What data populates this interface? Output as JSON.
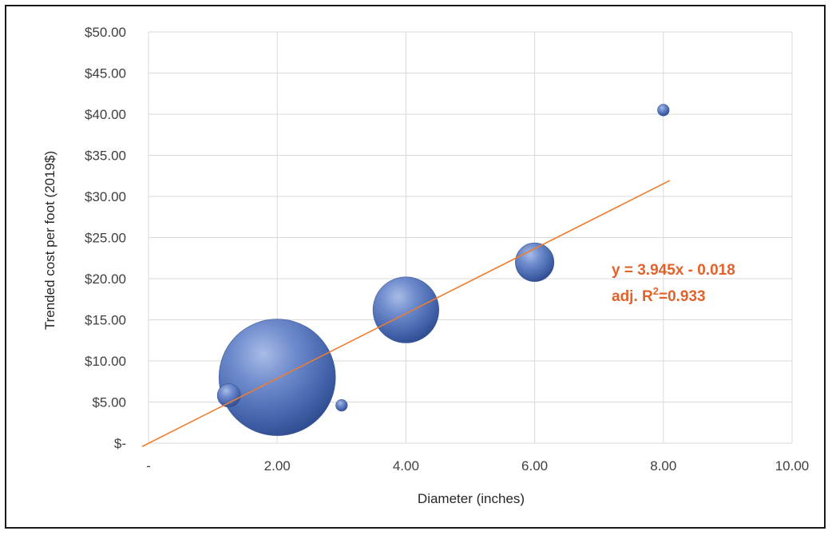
{
  "chart_data": {
    "type": "scatter",
    "subtype": "bubble",
    "title": "",
    "xlabel": "Diameter (inches)",
    "ylabel": "Trended cost per foot (2019$)",
    "xlim": [
      0,
      10
    ],
    "ylim": [
      0,
      50
    ],
    "x_ticks": [
      0,
      2,
      4,
      6,
      8,
      10
    ],
    "x_tick_labels": [
      "-",
      "2.00",
      "4.00",
      "6.00",
      "8.00",
      "10.00"
    ],
    "y_ticks": [
      0,
      5,
      10,
      15,
      20,
      25,
      30,
      35,
      40,
      45,
      50
    ],
    "y_tick_labels": [
      "$-",
      "$5.00",
      "$10.00",
      "$15.00",
      "$20.00",
      "$25.00",
      "$30.00",
      "$35.00",
      "$40.00",
      "$45.00",
      "$50.00"
    ],
    "grid": true,
    "legend": "none",
    "bubble_color": "#4f6fb5",
    "trend_color": "#ed7d31",
    "series": [
      {
        "points": [
          {
            "x": 1.25,
            "y": 5.8,
            "size": 4
          },
          {
            "x": 2.0,
            "y": 8.0,
            "size": 100
          },
          {
            "x": 3.0,
            "y": 4.6,
            "size": 1
          },
          {
            "x": 4.0,
            "y": 16.2,
            "size": 32
          },
          {
            "x": 6.0,
            "y": 22.0,
            "size": 11
          },
          {
            "x": 8.0,
            "y": 40.5,
            "size": 1
          }
        ]
      }
    ],
    "trendline": {
      "slope": 3.945,
      "intercept": -0.018,
      "x_range": [
        -0.1,
        8.1
      ]
    },
    "annotations": {
      "equation": "y = 3.945x - 0.018",
      "r2_prefix": "adj. R",
      "r2_sup": "2",
      "r2_value": "=0.933"
    }
  }
}
